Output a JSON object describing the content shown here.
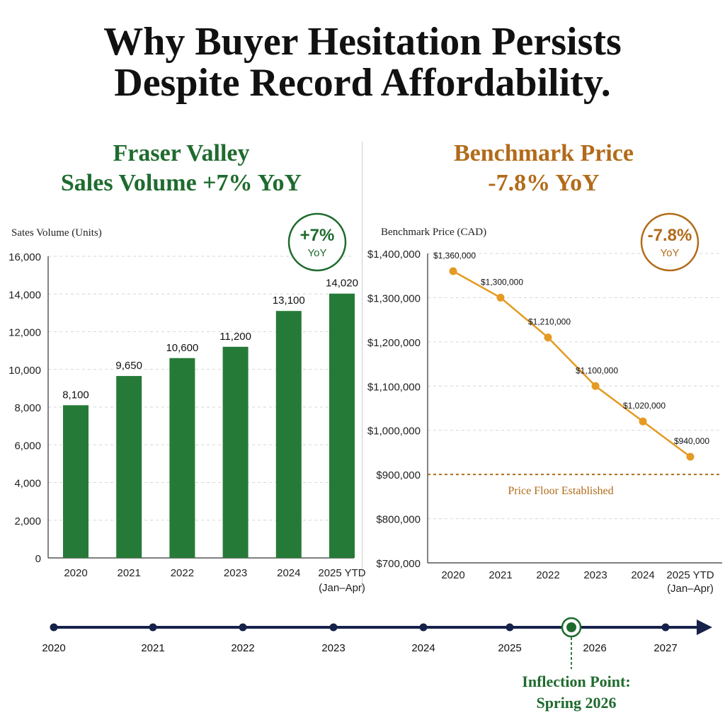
{
  "headline": {
    "line1": "Why Buyer Hesitation Persists",
    "line2": "Despite Record Affordability."
  },
  "colors": {
    "green": "#1f6b2e",
    "bar": "#267a37",
    "orange": "#b26b1a",
    "line": "#e59a22",
    "navy": "#16224a"
  },
  "chart_data": [
    {
      "type": "bar",
      "title_line1": "Fraser Valley",
      "title_line2": "Sales Volume +7% YoY",
      "ylabel": "Sates Volume (Units)",
      "ylim": [
        0,
        16000
      ],
      "yticks": [
        "0",
        "2,000",
        "4,000",
        "6,000",
        "8,000",
        "10,000",
        "12,000",
        "14,000",
        "16,000"
      ],
      "categories": [
        "2020",
        "2021",
        "2022",
        "2023",
        "2024",
        "2025 YTD"
      ],
      "category_sublabels": [
        "",
        "",
        "",
        "",
        "",
        "(Jan–Apr)"
      ],
      "values": [
        8100,
        9650,
        10600,
        11200,
        13100,
        14020
      ],
      "value_labels": [
        "8,100",
        "9,650",
        "10,600",
        "11,200",
        "13,100",
        "14,020"
      ],
      "badge": {
        "value": "+7%",
        "sub": "YoY"
      },
      "grid": "horizontal dashed"
    },
    {
      "type": "line",
      "title_line1": "Benchmark Price",
      "title_line2": "-7.8% YoY",
      "ylabel": "Benchmark Price (CAD)",
      "ylim": [
        700000,
        1400000
      ],
      "yticks": [
        "$700,000",
        "$800,000",
        "$900,000",
        "$1,000,000",
        "$1,100,000",
        "$1,200,000",
        "$1,300,000",
        "$1,400,000"
      ],
      "categories": [
        "2020",
        "2021",
        "2022",
        "2023",
        "2024",
        "2025 YTD"
      ],
      "category_sublabels": [
        "",
        "",
        "",
        "",
        "",
        "(Jan–Apr)"
      ],
      "values": [
        1360000,
        1300000,
        1210000,
        1100000,
        1020000,
        940000
      ],
      "value_labels": [
        "$1,360,000",
        "$1,300,000",
        "$1,210,000",
        "$1,100,000",
        "$1,020,000",
        "$940,000"
      ],
      "reference_line": {
        "value": 900000,
        "label": "Price Floor Established"
      },
      "badge": {
        "value": "-7.8%",
        "sub": "YoY"
      },
      "grid": "horizontal dashed"
    }
  ],
  "timeline": {
    "years": [
      "2020",
      "2021",
      "2022",
      "2023",
      "2024",
      "2025",
      "2026",
      "2027"
    ],
    "highlight_year": "2026",
    "inflection_line1": "Inflection Point:",
    "inflection_line2": "Spring 2026"
  }
}
